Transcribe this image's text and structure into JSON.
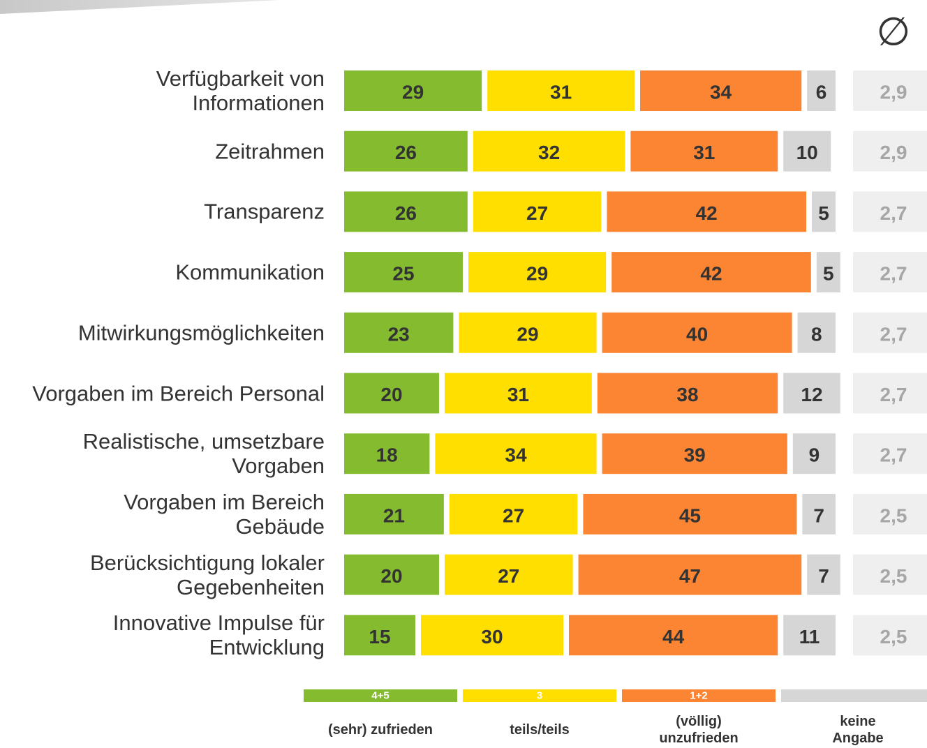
{
  "chart_data": {
    "type": "stacked-bar",
    "categories": [
      "Verfügbarkeit von\nInformationen",
      "Zeitrahmen",
      "Transparenz",
      "Kommunikation",
      "Mitwirkungsmöglichkeiten",
      "Vorgaben im Bereich Personal",
      "Realistische, umsetzbare\nVorgaben",
      "Vorgaben im Bereich\nGebäude",
      "Berücksichtigung lokaler\nGegebenheiten",
      "Innovative Impulse für\nEntwicklung"
    ],
    "series": [
      {
        "name": "(sehr) zufrieden",
        "code": "4+5",
        "color": "#84bb2f",
        "values": [
          29,
          26,
          26,
          25,
          23,
          20,
          18,
          21,
          20,
          15
        ]
      },
      {
        "name": "teils/teils",
        "code": "3",
        "color": "#ffdf00",
        "values": [
          31,
          32,
          27,
          29,
          29,
          31,
          34,
          27,
          27,
          30
        ]
      },
      {
        "name": "(völlig)\nunzufrieden",
        "code": "1+2",
        "color": "#fb8533",
        "values": [
          34,
          31,
          42,
          42,
          40,
          38,
          39,
          45,
          47,
          44
        ]
      },
      {
        "name": "keine\nAngabe",
        "color": "#d6d6d6",
        "values": [
          6,
          10,
          5,
          5,
          8,
          12,
          9,
          7,
          7,
          11
        ]
      }
    ],
    "xlim": [
      0,
      100
    ],
    "average": {
      "title": "∅",
      "values": [
        2.9,
        2.9,
        2.7,
        2.7,
        2.7,
        2.7,
        2.7,
        2.5,
        2.5,
        2.5
      ],
      "value_labels": [
        "2,9",
        "2,9",
        "2,7",
        "2,7",
        "2,7",
        "2,7",
        "2,7",
        "2,5",
        "2,5",
        "2,5"
      ]
    }
  }
}
